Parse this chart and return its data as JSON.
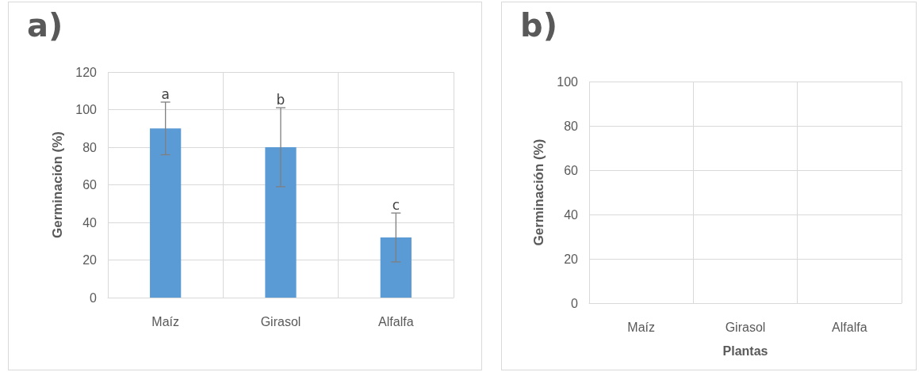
{
  "chart_data": [
    {
      "type": "bar",
      "title": "a)",
      "ylabel": "Germinación (%)",
      "categories": [
        "Maíz",
        "Girasol",
        "Alfalfa"
      ],
      "series": [
        {
          "color": "#5b9bd5",
          "values": [
            90,
            80,
            32
          ],
          "errors": [
            [
              76,
              104
            ],
            [
              59,
              101
            ],
            [
              19,
              45
            ]
          ]
        }
      ],
      "ylim": [
        0,
        120
      ],
      "yticks": [
        0,
        20,
        40,
        60,
        80,
        100,
        120
      ],
      "grid": true,
      "annotations": [
        {
          "text": "a",
          "x": "Maíz",
          "y": 104
        },
        {
          "text": "b",
          "x": "Girasol",
          "y": 101
        },
        {
          "text": "c",
          "x": "Alfalfa",
          "y": 45
        }
      ]
    },
    {
      "type": "bar",
      "title": "b)",
      "xlabel": "Plantas",
      "ylabel": "Germinación (%)",
      "categories": [
        "Maíz",
        "Girasol",
        "Alfalfa"
      ],
      "series": [
        {
          "color": "#5b9bd5",
          "values": [
            null,
            null,
            null
          ]
        }
      ],
      "ylim": [
        0,
        100
      ],
      "yticks": [
        0,
        20,
        40,
        60,
        80,
        100
      ],
      "grid": true
    }
  ]
}
